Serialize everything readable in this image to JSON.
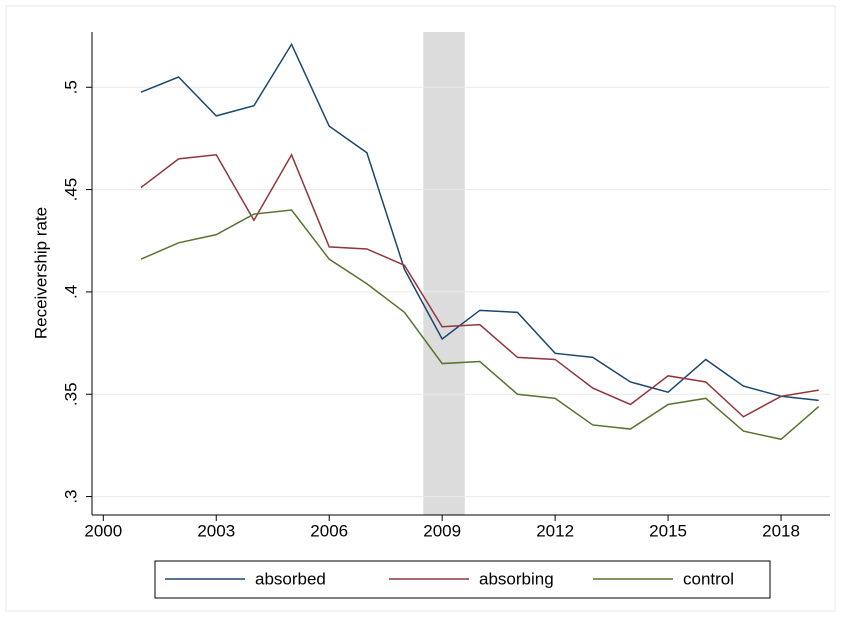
{
  "chart_data": {
    "type": "line",
    "y_label": "Receivership rate",
    "x": [
      2001,
      2002,
      2003,
      2004,
      2005,
      2006,
      2007,
      2008,
      2009,
      2010,
      2011,
      2012,
      2013,
      2014,
      2015,
      2016,
      2017,
      2018,
      2019
    ],
    "series": [
      {
        "name": "absorbed",
        "color": "#1a476f",
        "values": [
          0.4976,
          0.505,
          0.486,
          0.491,
          0.521,
          0.481,
          0.468,
          0.411,
          0.377,
          0.391,
          0.39,
          0.37,
          0.368,
          0.356,
          0.351,
          0.367,
          0.354,
          0.349,
          0.347
        ]
      },
      {
        "name": "absorbing",
        "color": "#90353b",
        "values": [
          0.451,
          0.465,
          0.467,
          0.435,
          0.467,
          0.422,
          0.421,
          0.413,
          0.383,
          0.384,
          0.368,
          0.367,
          0.353,
          0.345,
          0.359,
          0.356,
          0.339,
          0.349,
          0.352
        ]
      },
      {
        "name": "control",
        "color": "#55752f",
        "values": [
          0.416,
          0.424,
          0.428,
          0.438,
          0.44,
          0.416,
          0.404,
          0.39,
          0.365,
          0.366,
          0.35,
          0.348,
          0.335,
          0.333,
          0.345,
          0.348,
          0.332,
          0.328,
          0.344
        ]
      }
    ],
    "shade": [
      2008.5,
      2009.6
    ],
    "shade_color": "#dcdcdc",
    "xlim": [
      1999.7,
      2019.3
    ],
    "xticks": [
      2000,
      2003,
      2006,
      2009,
      2012,
      2015,
      2018
    ],
    "ylim": [
      0.291,
      0.527
    ],
    "yticks": [
      {
        "value": 0.3,
        "label": ".3"
      },
      {
        "value": 0.35,
        "label": ".35"
      },
      {
        "value": 0.4,
        "label": ".4"
      },
      {
        "value": 0.45,
        "label": ".45"
      },
      {
        "value": 0.5,
        "label": ".5"
      }
    ],
    "grid": true,
    "legend": "bottom"
  }
}
